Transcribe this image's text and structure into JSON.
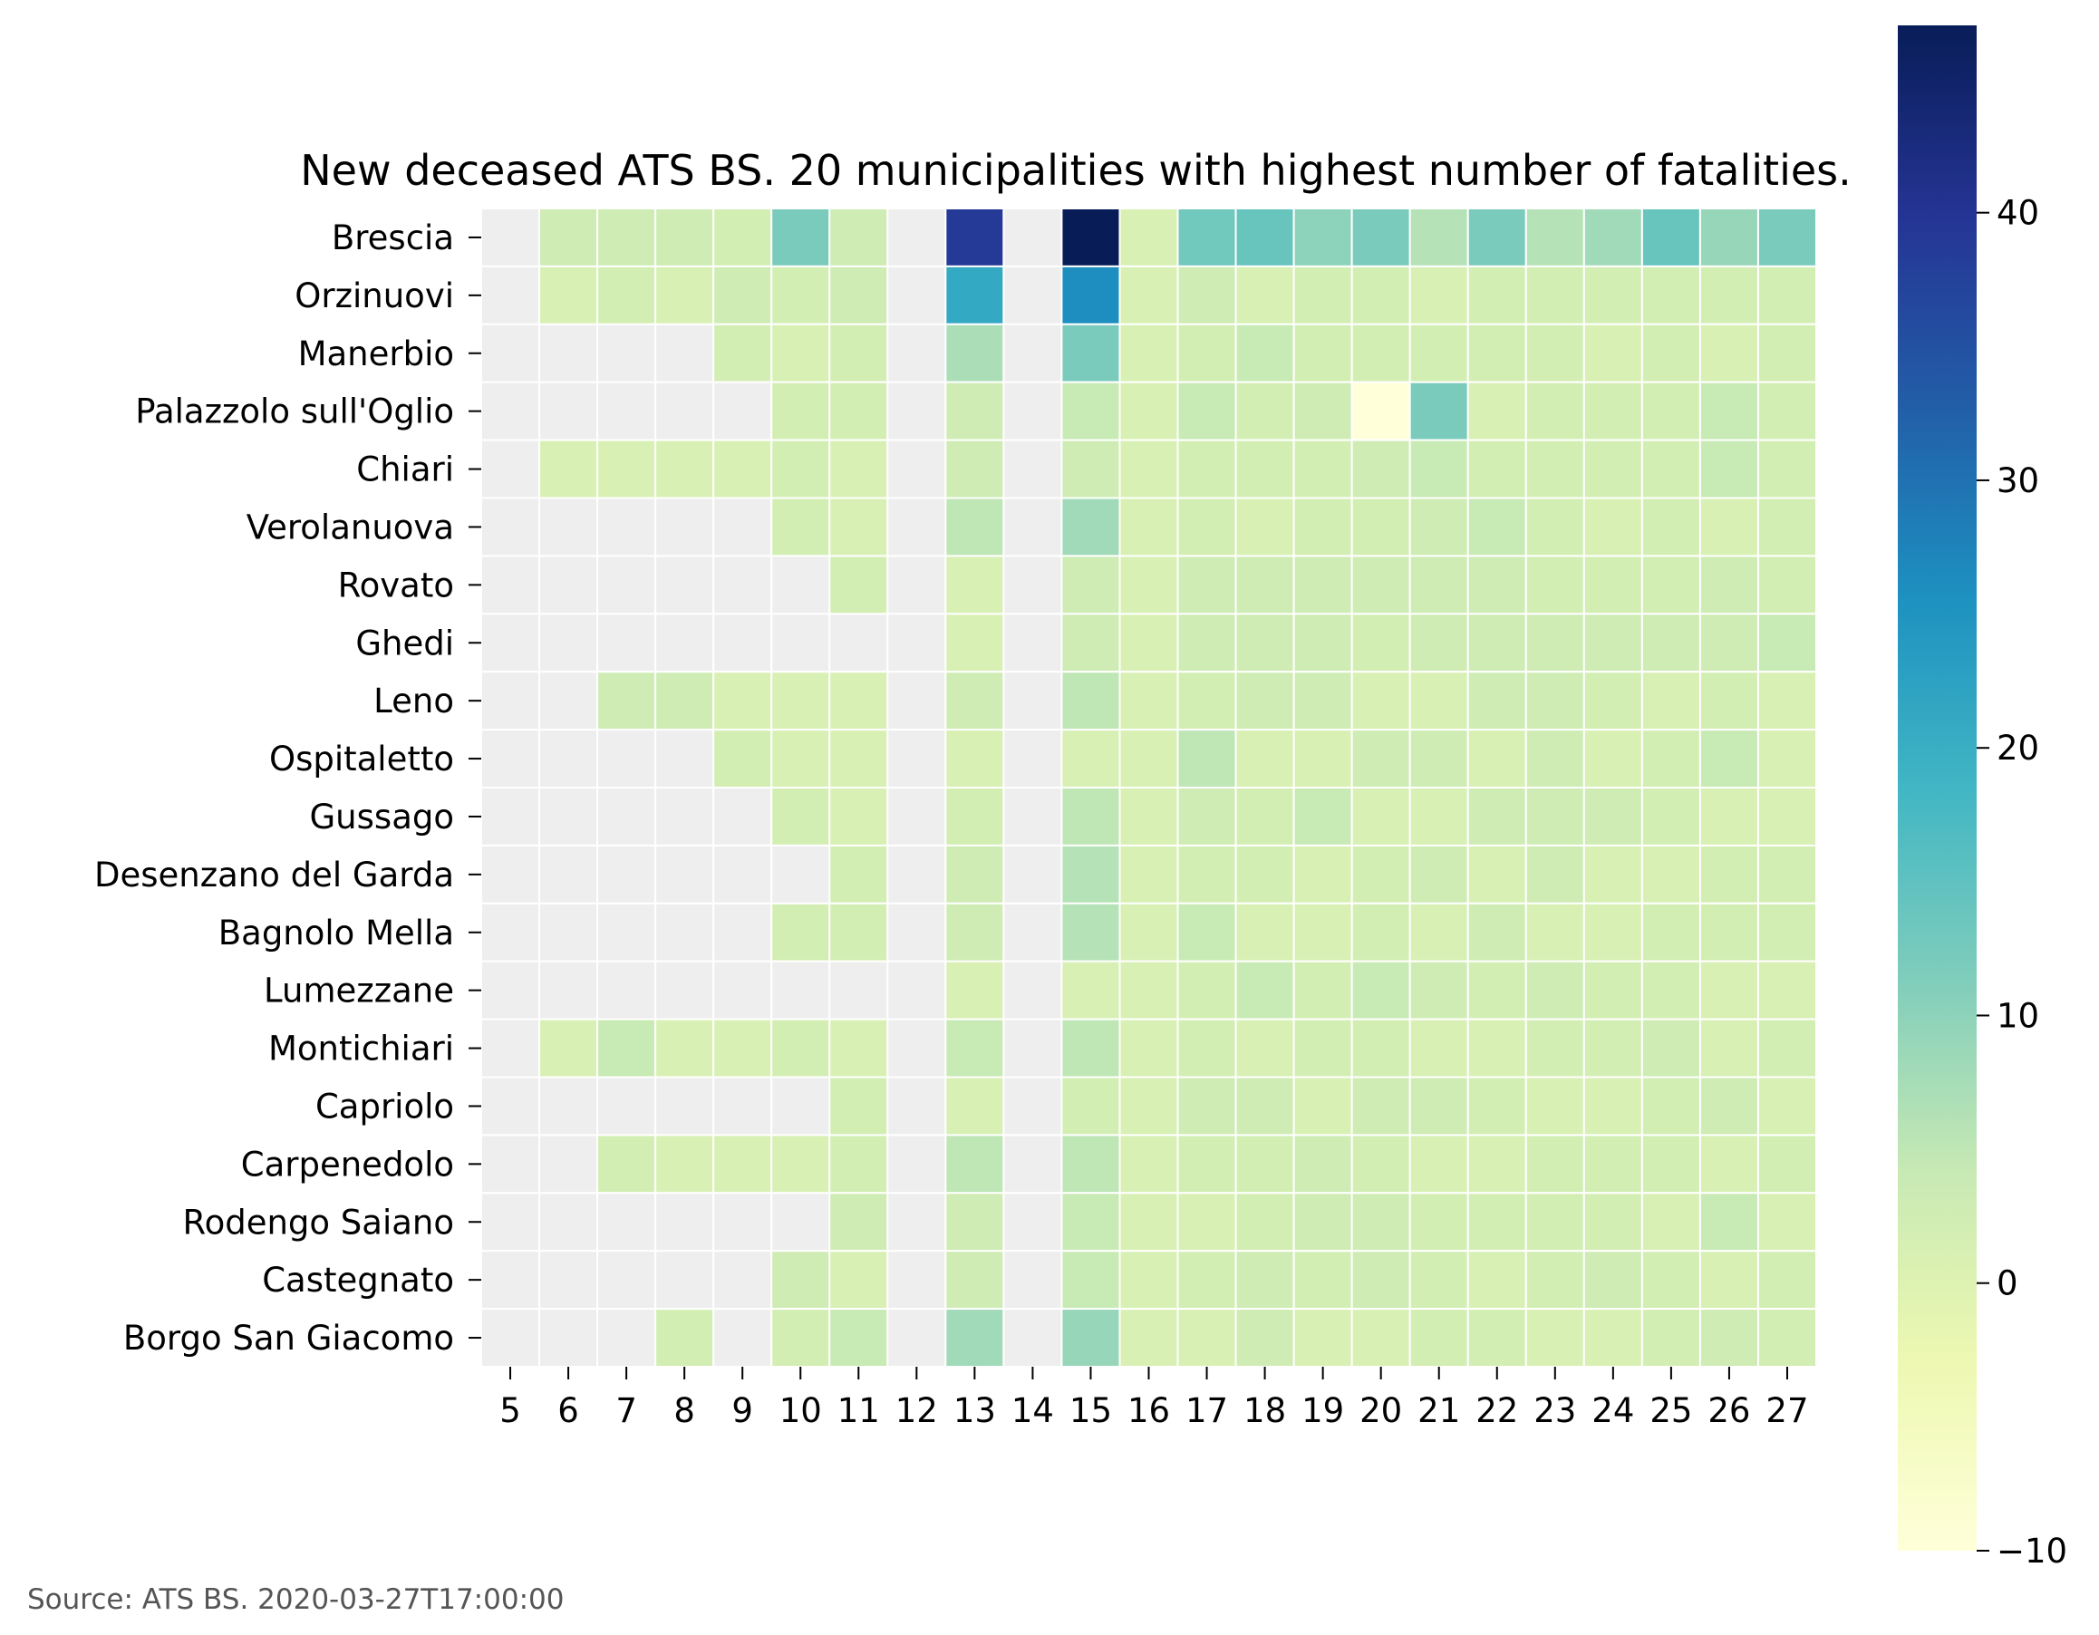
{
  "chart_data": {
    "type": "heatmap",
    "title": "New deceased ATS BS. 20 municipalities with highest number of fatalities.",
    "x": [
      "5",
      "6",
      "7",
      "8",
      "9",
      "10",
      "11",
      "12",
      "13",
      "14",
      "15",
      "16",
      "17",
      "18",
      "19",
      "20",
      "21",
      "22",
      "23",
      "24",
      "25",
      "26",
      "27"
    ],
    "rows": [
      "Brescia",
      "Orzinuovi",
      "Manerbio",
      "Palazzolo sull'Oglio",
      "Chiari",
      "Verolanuova",
      "Rovato",
      "Ghedi",
      "Leno",
      "Ospitaletto",
      "Gussago",
      "Desenzano del Garda",
      "Bagnolo Mella",
      "Lumezzane",
      "Montichiari",
      "Capriolo",
      "Carpenedolo",
      "Rodengo Saiano",
      "Castegnato",
      "Borgo San Giacomo"
    ],
    "values": [
      [
        null,
        3,
        3,
        3,
        2,
        12,
        3,
        null,
        39,
        null,
        47,
        1,
        13,
        14,
        10,
        12,
        6,
        12,
        6,
        8,
        14,
        9,
        12
      ],
      [
        null,
        1,
        2,
        1,
        3,
        2,
        3,
        null,
        21,
        null,
        26,
        1,
        3,
        1,
        2,
        2,
        1,
        2,
        2,
        2,
        2,
        2,
        2
      ],
      [
        null,
        null,
        null,
        null,
        2,
        1,
        2,
        null,
        7,
        null,
        12,
        1,
        2,
        4,
        2,
        2,
        2,
        2,
        2,
        1,
        2,
        1,
        2
      ],
      [
        null,
        null,
        null,
        null,
        null,
        2,
        2,
        null,
        3,
        null,
        4,
        1,
        4,
        2,
        3,
        -10,
        12,
        1,
        2,
        2,
        2,
        4,
        2
      ],
      [
        null,
        1,
        1,
        1,
        1,
        2,
        1,
        null,
        3,
        null,
        3,
        1,
        2,
        2,
        2,
        3,
        4,
        2,
        2,
        2,
        2,
        4,
        2
      ],
      [
        null,
        null,
        null,
        null,
        null,
        2,
        1,
        null,
        5,
        null,
        8,
        1,
        2,
        1,
        2,
        2,
        3,
        4,
        2,
        1,
        2,
        1,
        2
      ],
      [
        null,
        null,
        null,
        null,
        null,
        null,
        2,
        null,
        1,
        null,
        3,
        1,
        3,
        3,
        3,
        3,
        3,
        3,
        2,
        2,
        2,
        3,
        2
      ],
      [
        null,
        null,
        null,
        null,
        null,
        null,
        null,
        null,
        1,
        null,
        3,
        1,
        3,
        3,
        3,
        2,
        3,
        3,
        3,
        3,
        3,
        3,
        4
      ],
      [
        null,
        null,
        3,
        3,
        1,
        1,
        1,
        null,
        3,
        null,
        5,
        1,
        2,
        3,
        3,
        1,
        1,
        3,
        3,
        2,
        1,
        2,
        1
      ],
      [
        null,
        null,
        null,
        null,
        2,
        1,
        1,
        null,
        1,
        null,
        1,
        1,
        5,
        1,
        1,
        3,
        3,
        1,
        3,
        1,
        2,
        4,
        1
      ],
      [
        null,
        null,
        null,
        null,
        null,
        2,
        1,
        null,
        2,
        null,
        5,
        1,
        3,
        2,
        4,
        1,
        1,
        3,
        3,
        3,
        2,
        1,
        1
      ],
      [
        null,
        null,
        null,
        null,
        null,
        null,
        2,
        null,
        3,
        null,
        6,
        1,
        2,
        2,
        1,
        2,
        3,
        1,
        3,
        1,
        1,
        2,
        2
      ],
      [
        null,
        null,
        null,
        null,
        null,
        2,
        2,
        null,
        3,
        null,
        6,
        1,
        4,
        1,
        1,
        2,
        1,
        3,
        1,
        1,
        2,
        2,
        2
      ],
      [
        null,
        null,
        null,
        null,
        null,
        null,
        null,
        null,
        1,
        null,
        1,
        1,
        2,
        4,
        2,
        4,
        3,
        2,
        3,
        2,
        2,
        1,
        1
      ],
      [
        null,
        1,
        4,
        1,
        1,
        2,
        1,
        null,
        4,
        null,
        5,
        1,
        2,
        1,
        2,
        2,
        1,
        1,
        2,
        2,
        3,
        1,
        2
      ],
      [
        null,
        null,
        null,
        null,
        null,
        null,
        2,
        null,
        1,
        null,
        2,
        1,
        3,
        3,
        1,
        3,
        3,
        2,
        1,
        1,
        2,
        3,
        1
      ],
      [
        null,
        null,
        2,
        1,
        1,
        1,
        2,
        null,
        5,
        null,
        5,
        1,
        2,
        2,
        3,
        2,
        1,
        1,
        2,
        2,
        2,
        1,
        2
      ],
      [
        null,
        null,
        null,
        null,
        null,
        null,
        3,
        null,
        3,
        null,
        4,
        1,
        1,
        2,
        3,
        3,
        2,
        2,
        2,
        2,
        1,
        4,
        1
      ],
      [
        null,
        null,
        null,
        null,
        null,
        3,
        1,
        null,
        3,
        null,
        4,
        1,
        2,
        3,
        2,
        3,
        2,
        1,
        2,
        3,
        2,
        1,
        2
      ],
      [
        null,
        null,
        null,
        2,
        null,
        2,
        4,
        null,
        8,
        null,
        9,
        1,
        1,
        3,
        1,
        1,
        2,
        2,
        1,
        1,
        2,
        3,
        2
      ]
    ],
    "vmin": -10,
    "vmax": 47,
    "colormap": "YlGnBu",
    "missing_color": "#eeeeee",
    "colorbar_ticks": [
      -10,
      0,
      10,
      20,
      30,
      40
    ],
    "colorbar_tick_labels": [
      "−10",
      "0",
      "10",
      "20",
      "30",
      "40"
    ],
    "grid": false
  },
  "source_note": "Source: ATS BS. 2020-03-27T17:00:00"
}
